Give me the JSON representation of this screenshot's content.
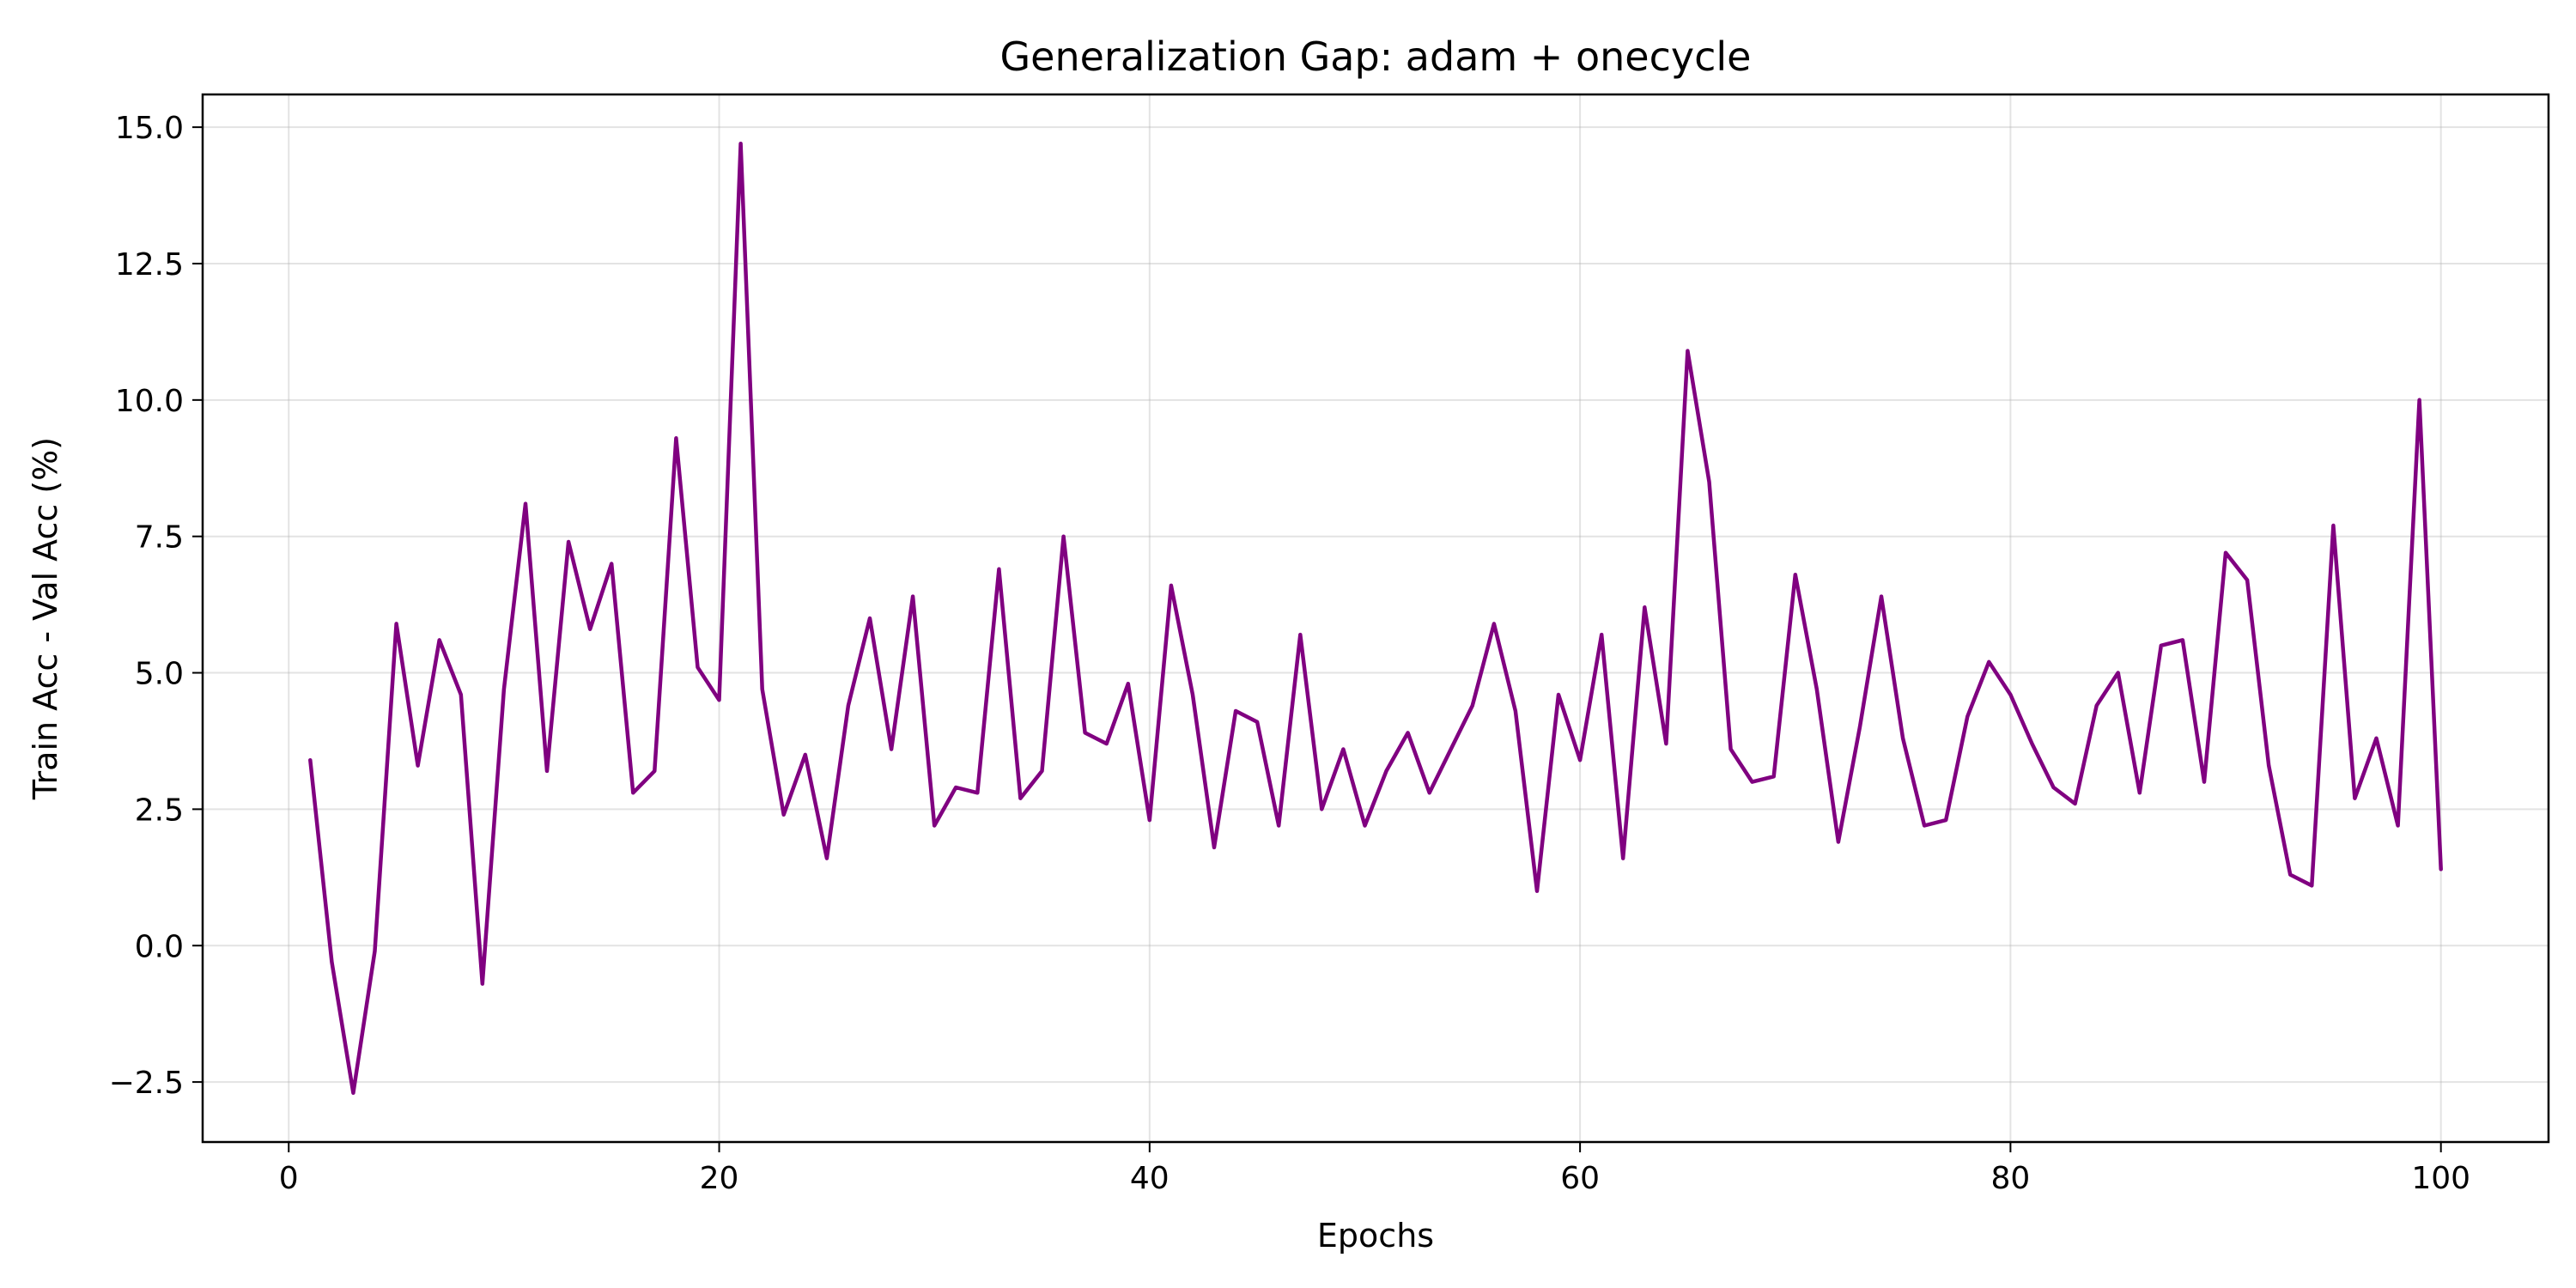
{
  "chart_data": {
    "type": "line",
    "title": "Generalization Gap: adam + onecycle",
    "xlabel": "Epochs",
    "ylabel": "Train Acc - Val Acc (%)",
    "xlim": [
      -4,
      105
    ],
    "ylim": [
      -3.6,
      15.6
    ],
    "xticks": [
      0,
      20,
      40,
      60,
      80,
      100
    ],
    "yticks": [
      -2.5,
      0.0,
      2.5,
      5.0,
      7.5,
      10.0,
      12.5,
      15.0
    ],
    "xtick_labels": [
      "0",
      "20",
      "40",
      "60",
      "80",
      "100"
    ],
    "ytick_labels": [
      "−2.5",
      "0.0",
      "2.5",
      "5.0",
      "7.5",
      "10.0",
      "12.5",
      "15.0"
    ],
    "grid": true,
    "color": "#800080",
    "series": [
      {
        "x": [
          1,
          2,
          3,
          4,
          5,
          6,
          7,
          8,
          9,
          10,
          11,
          12,
          13,
          14,
          15,
          16,
          17,
          18,
          19,
          20,
          21,
          22,
          23,
          24,
          25,
          26,
          27,
          28,
          29,
          30,
          31,
          32,
          33,
          34,
          35,
          36,
          37,
          38,
          39,
          40,
          41,
          42,
          43,
          44,
          45,
          46,
          47,
          48,
          49,
          50,
          51,
          52,
          53,
          54,
          55,
          56,
          57,
          58,
          59,
          60,
          61,
          62,
          63,
          64,
          65,
          66,
          67,
          68,
          69,
          70,
          71,
          72,
          73,
          74,
          75,
          76,
          77,
          78,
          79,
          80,
          81,
          82,
          83,
          84,
          85,
          86,
          87,
          88,
          89,
          90,
          91,
          92,
          93,
          94,
          95,
          96,
          97,
          98,
          99,
          100
        ],
        "values": [
          3.4,
          -0.3,
          -2.7,
          -0.1,
          5.9,
          3.3,
          5.6,
          4.6,
          -0.7,
          4.7,
          8.1,
          3.2,
          7.4,
          5.8,
          7.0,
          2.8,
          3.2,
          9.3,
          5.1,
          4.5,
          14.7,
          4.7,
          2.4,
          3.5,
          1.6,
          4.4,
          6.0,
          3.6,
          6.4,
          2.2,
          2.9,
          2.8,
          6.9,
          2.7,
          3.2,
          7.5,
          3.9,
          3.7,
          4.8,
          2.3,
          6.6,
          4.6,
          1.8,
          4.3,
          4.1,
          2.2,
          5.7,
          2.5,
          3.6,
          2.2,
          3.2,
          3.9,
          2.8,
          3.6,
          4.4,
          5.9,
          4.3,
          1.0,
          4.6,
          3.4,
          5.7,
          1.6,
          6.2,
          3.7,
          10.9,
          8.5,
          3.6,
          3.0,
          3.1,
          6.8,
          4.7,
          1.9,
          4.0,
          6.4,
          3.8,
          2.2,
          2.3,
          4.2,
          5.2,
          4.6,
          3.7,
          2.9,
          2.6,
          4.4,
          5.0,
          2.8,
          5.5,
          5.6,
          3.0,
          7.2,
          6.7,
          3.3,
          1.3,
          1.1,
          7.7,
          2.7,
          3.8,
          2.2,
          10.0,
          1.4
        ]
      }
    ]
  }
}
